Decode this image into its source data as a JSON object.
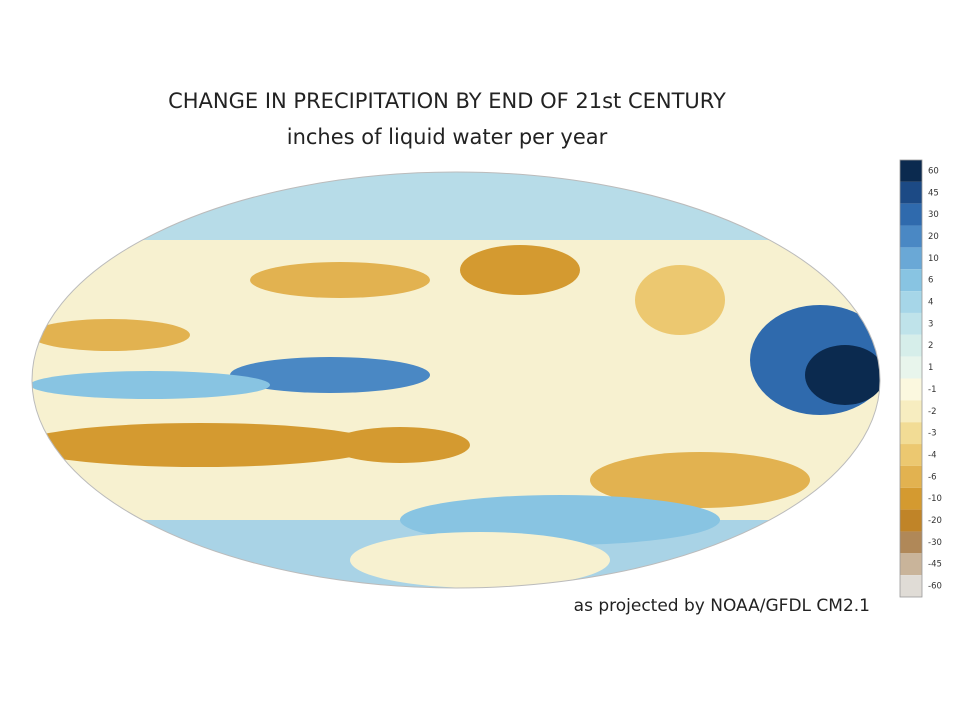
{
  "title": "CHANGE IN PRECIPITATION BY END OF 21st CENTURY",
  "subtitle": "inches of liquid water per year",
  "credit": "as projected by NOAA/GFDL CM2.1",
  "colorbar": {
    "ticks": [
      60,
      45,
      30,
      20,
      10,
      6,
      4,
      3,
      2,
      1,
      -1,
      -2,
      -3,
      -4,
      -6,
      -10,
      -20,
      -30,
      -45,
      -60
    ],
    "colors": [
      "#0b2a4f",
      "#1c4a85",
      "#2f6aad",
      "#4a88c4",
      "#6aa8d6",
      "#88c4e2",
      "#a6d6e8",
      "#bfe3ea",
      "#d6eeea",
      "#e8f5ec",
      "#fbf8df",
      "#f7edc0",
      "#f2dc95",
      "#ecc870",
      "#e2b250",
      "#d49a30",
      "#c08428",
      "#b08858",
      "#c9b49a",
      "#e0dcd6"
    ]
  }
}
